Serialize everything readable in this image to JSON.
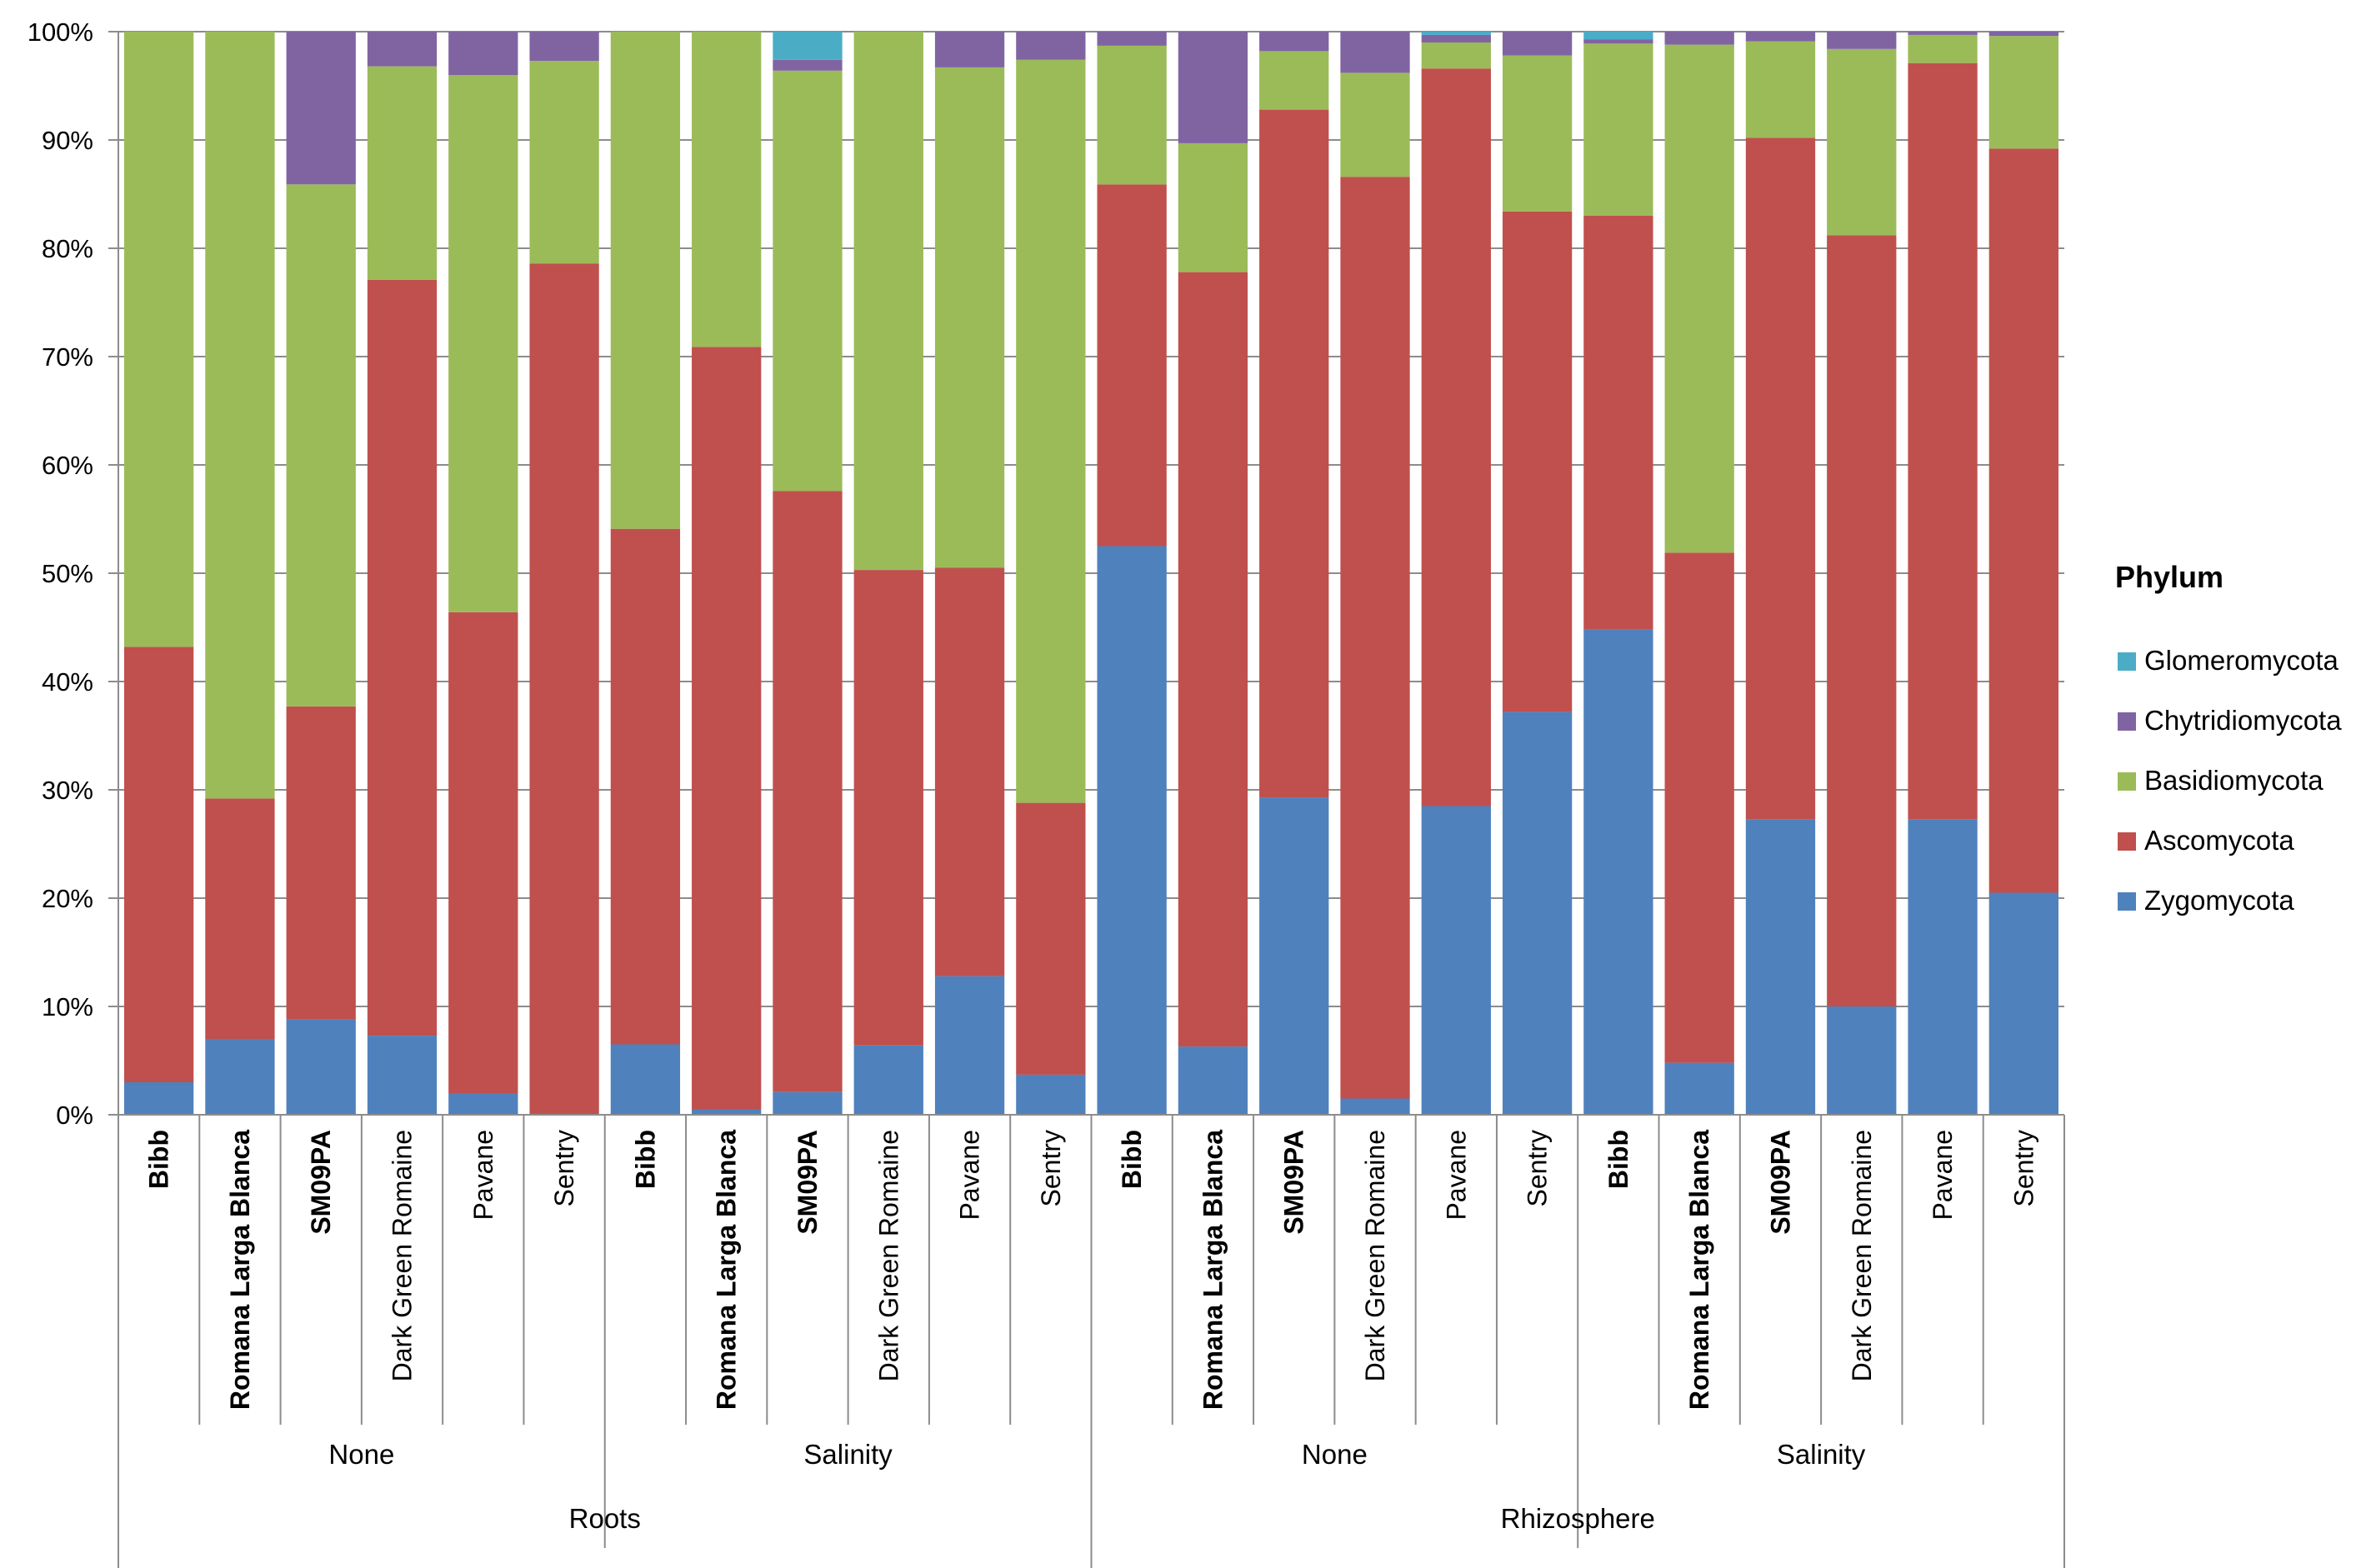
{
  "chart_data": {
    "type": "stacked_bar_percent",
    "title": "",
    "xlabel": "",
    "ylabel": "",
    "ylim": [
      0,
      100
    ],
    "yticks": [
      "0%",
      "10%",
      "20%",
      "30%",
      "40%",
      "50%",
      "60%",
      "70%",
      "80%",
      "90%",
      "100%"
    ],
    "grid": true,
    "legend_position": "right",
    "legend_title": "Phylum",
    "legend_order": [
      "Glomeromycota",
      "Chytridiomycota",
      "Basidiomycota",
      "Ascomycota",
      "Zygomycota"
    ],
    "series_colors": {
      "Zygomycota": "#4f81bd",
      "Ascomycota": "#c0504d",
      "Basidiomycota": "#9bbb59",
      "Chytridiomycota": "#8064a2",
      "Glomeromycota": "#4bacc6"
    },
    "categories": [
      "Bibb",
      "Romana Larga Blanca",
      "SM09PA",
      "Dark Green Romaine",
      "Pavane",
      "Sentry",
      "Bibb",
      "Romana Larga Blanca",
      "SM09PA",
      "Dark Green Romaine",
      "Pavane",
      "Sentry",
      "Bibb",
      "Romana Larga Blanca",
      "SM09PA",
      "Dark Green Romaine",
      "Pavane",
      "Sentry",
      "Bibb",
      "Romana Larga Blanca",
      "SM09PA",
      "Dark Green Romaine",
      "Pavane",
      "Sentry"
    ],
    "bold_categories": [
      "Bibb",
      "Romana Larga Blanca",
      "SM09PA"
    ],
    "treatment_groups": [
      {
        "label": "None",
        "span": 6
      },
      {
        "label": "Salinity",
        "span": 6
      },
      {
        "label": "None",
        "span": 6
      },
      {
        "label": "Salinity",
        "span": 6
      }
    ],
    "sample_groups": [
      {
        "label": "Roots",
        "span": 12
      },
      {
        "label": "Rhizosphere",
        "span": 12
      }
    ],
    "series": [
      {
        "name": "Zygomycota",
        "values": [
          3,
          7,
          8.8,
          7.3,
          2,
          0,
          6.5,
          0.5,
          2.1,
          6.4,
          12.8,
          3.7,
          52.5,
          6.3,
          29.3,
          1.5,
          28.5,
          37.2,
          44.8,
          4.8,
          27.3,
          10,
          27.3,
          20.5
        ]
      },
      {
        "name": "Ascomycota",
        "values": [
          40.2,
          22.2,
          28.9,
          69.8,
          44.4,
          78.6,
          47.6,
          70.4,
          55.5,
          43.9,
          37.7,
          25.1,
          33.4,
          71.5,
          63.5,
          85.1,
          68.1,
          46.2,
          38.2,
          47.1,
          62.9,
          71.2,
          69.8,
          68.7
        ]
      },
      {
        "name": "Basidiomycota",
        "values": [
          56.8,
          70.8,
          48.2,
          19.7,
          49.6,
          18.7,
          45.9,
          29.1,
          38.8,
          49.7,
          46.2,
          68.6,
          12.8,
          11.9,
          5.4,
          9.6,
          2.4,
          14.4,
          15.9,
          46.9,
          8.9,
          17.2,
          2.6,
          10.4
        ]
      },
      {
        "name": "Chytridiomycota",
        "values": [
          0,
          0,
          14.1,
          3.2,
          4,
          2.7,
          0,
          0,
          1,
          0,
          3.3,
          2.6,
          1.3,
          10.3,
          1.8,
          3.8,
          0.7,
          2.2,
          0.4,
          1.2,
          0.9,
          1.6,
          0.3,
          0.4
        ]
      },
      {
        "name": "Glomeromycota",
        "values": [
          0,
          0,
          0,
          0,
          0,
          0,
          0,
          0,
          2.6,
          0,
          0,
          0,
          0,
          0,
          0,
          0,
          0.3,
          0,
          0.7,
          0,
          0,
          0,
          0,
          0
        ]
      }
    ]
  }
}
